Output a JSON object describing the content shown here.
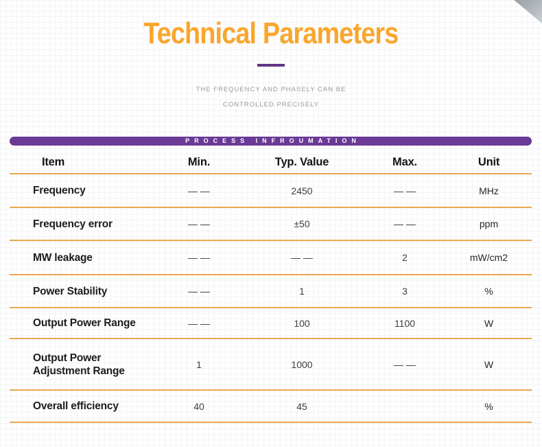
{
  "page": {
    "title": "Technical Parameters",
    "subtitle_line1": "THE FREQUENCY AND PHASELY CAN BE",
    "subtitle_line2": "CONTROLLED PRECISELY",
    "banner_label": "PROCESS INFROUMATION"
  },
  "colors": {
    "title_orange": "#f9a62c",
    "divider_purple": "#5e3487",
    "banner_purple": "#6b3996",
    "separator_orange": "#e9a84e",
    "corner_gray": "#aab0b5",
    "subtitle_gray": "#9b9b9b"
  },
  "table": {
    "columns": [
      "Item",
      "Min.",
      "Typ. Value",
      "Max.",
      "Unit"
    ],
    "rows": [
      {
        "item": "Frequency",
        "min": "— —",
        "typ": "2450",
        "max": "— —",
        "unit": "MHz"
      },
      {
        "item": "Frequency error",
        "min": "— —",
        "typ": "±50",
        "max": "— —",
        "unit": "ppm"
      },
      {
        "item": "MW leakage",
        "min": "— —",
        "typ": "— —",
        "max": "2",
        "unit": "mW/cm2"
      },
      {
        "item": "Power Stability",
        "min": "— —",
        "typ": "1",
        "max": "3",
        "unit": "%"
      },
      {
        "item": "Output Power Range",
        "min": "— —",
        "typ": "100",
        "max": "1100",
        "unit": "W"
      },
      {
        "item": "Output Power Adjustment Range",
        "min": "1",
        "typ": "1000",
        "max": "— —",
        "unit": "W"
      },
      {
        "item": "Overall efficiency",
        "min": "40",
        "typ": "45",
        "max": "",
        "unit": "%"
      }
    ]
  }
}
